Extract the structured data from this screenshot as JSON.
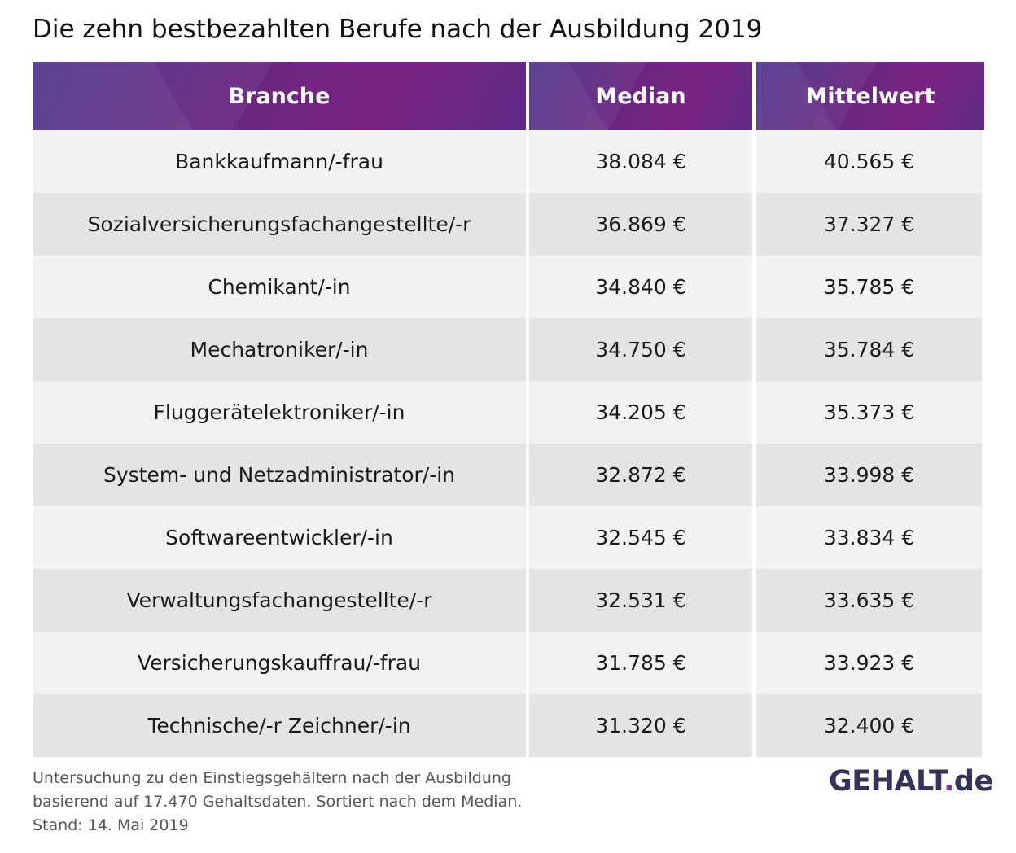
{
  "title": "Die zehn bestbezahlten Berufe nach der Ausbildung 2019",
  "chart_data": {
    "type": "table",
    "columns": [
      "Branche",
      "Median",
      "Mittelwert"
    ],
    "rows": [
      {
        "branche": "Bankkaufmann/-frau",
        "median": "38.084 €",
        "mittelwert": "40.565 €"
      },
      {
        "branche": "Sozialversicherungsfachangestellte/-r",
        "median": "36.869 €",
        "mittelwert": "37.327 €"
      },
      {
        "branche": "Chemikant/-in",
        "median": "34.840 €",
        "mittelwert": "35.785 €"
      },
      {
        "branche": "Mechatroniker/-in",
        "median": "34.750 €",
        "mittelwert": "35.784 €"
      },
      {
        "branche": "Fluggerätelektroniker/-in",
        "median": "34.205 €",
        "mittelwert": "35.373 €"
      },
      {
        "branche": "System- und Netzadministrator/-in",
        "median": "32.872 €",
        "mittelwert": "33.998 €"
      },
      {
        "branche": "Softwareentwickler/-in",
        "median": "32.545 €",
        "mittelwert": "33.834 €"
      },
      {
        "branche": "Verwaltungsfachangestellte/-r",
        "median": "32.531 €",
        "mittelwert": "33.635 €"
      },
      {
        "branche": "Versicherungskauffrau/-frau",
        "median": "31.785 €",
        "mittelwert": "33.923 €"
      },
      {
        "branche": "Technische/-r Zeichner/-in",
        "median": "31.320 €",
        "mittelwert": "32.400 €"
      }
    ]
  },
  "footnote": [
    "Untersuchung zu den Einstiegsgehältern nach der Ausbildung",
    "basierend auf 17.470 Gehaltsdaten. Sortiert nach dem Median.",
    "Stand: 14. Mai 2019"
  ],
  "logo": {
    "main": "GEHALT",
    "dot": ".",
    "tld": "de"
  },
  "colors": {
    "header_start": "#4a2f88",
    "header_end": "#7a2382",
    "logo": "#34345a",
    "logo_dot": "#8a2a8a"
  }
}
